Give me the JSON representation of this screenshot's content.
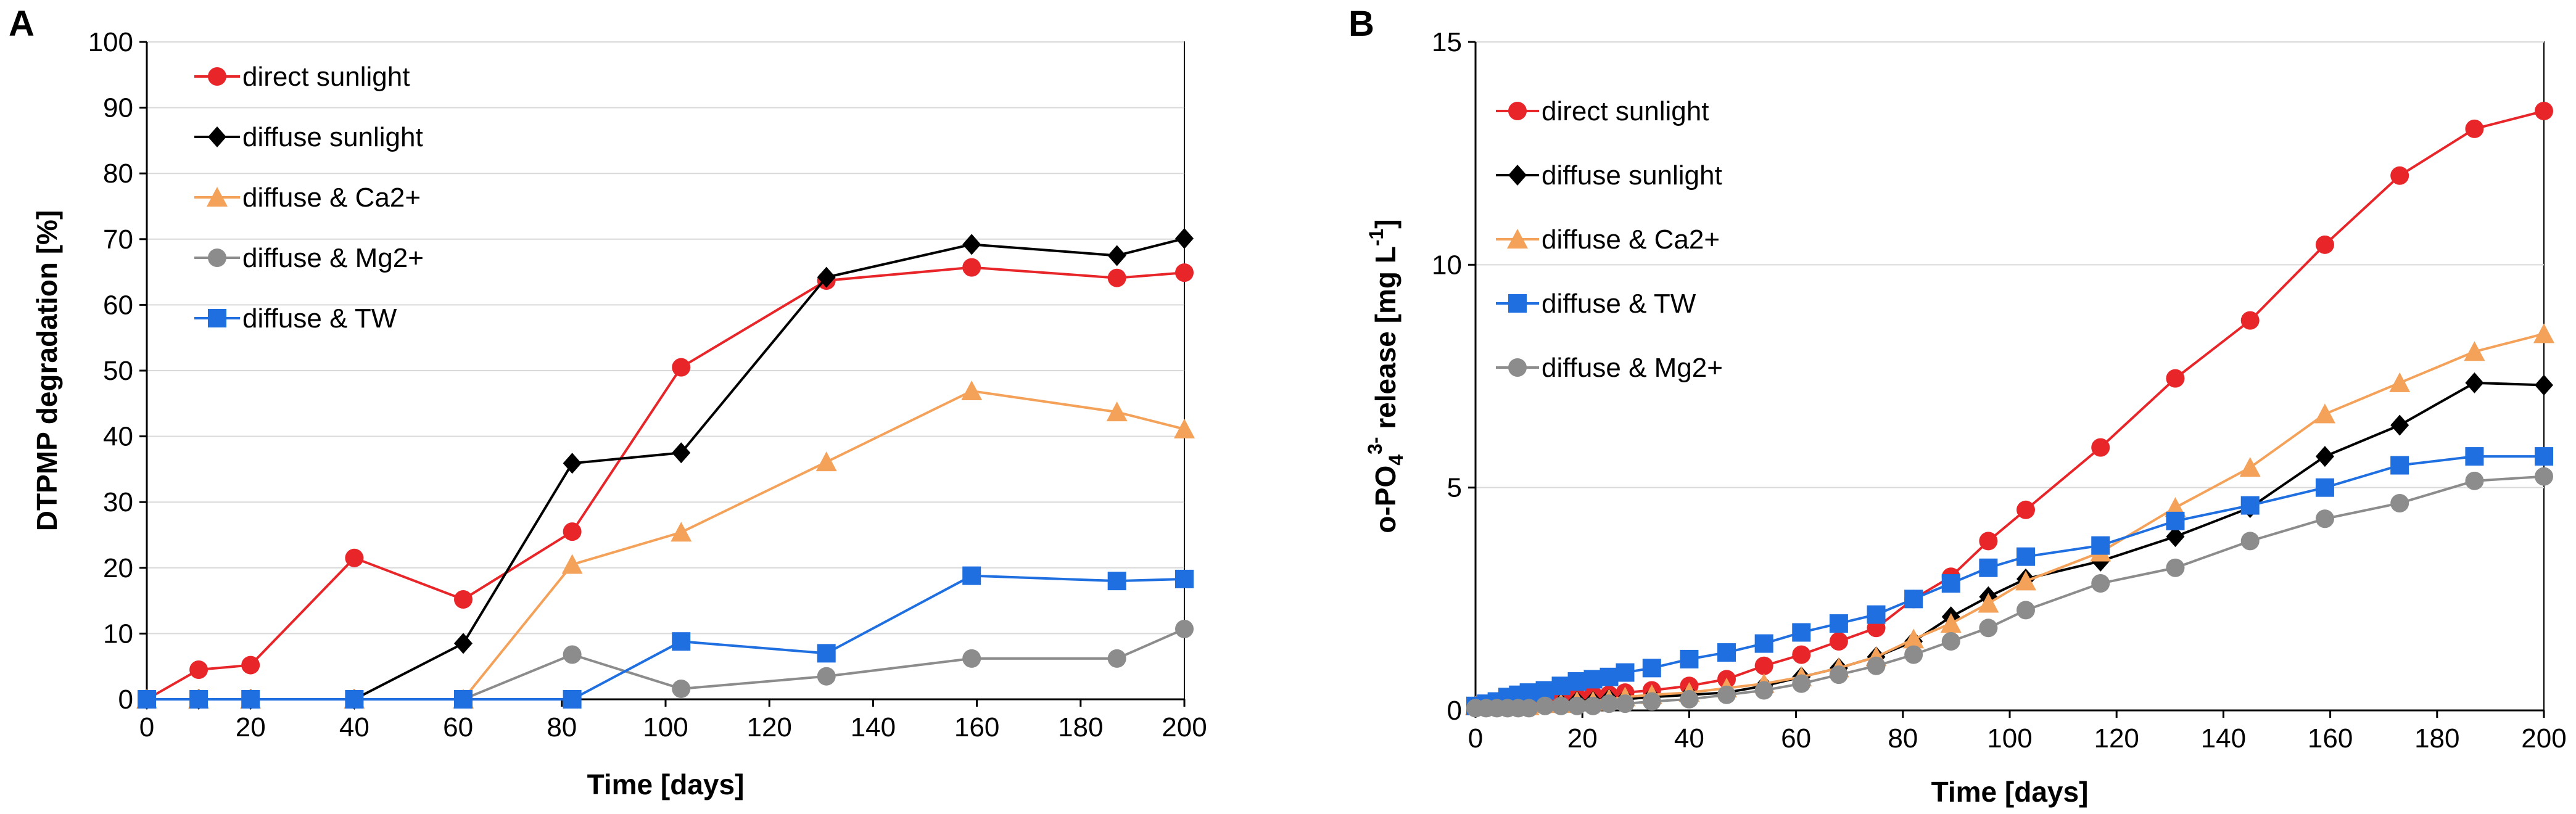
{
  "chart_data": [
    {
      "type": "line",
      "panel_label": "A",
      "title": "",
      "xlabel": "Time [days]",
      "ylabel": "DTPMP degradation [%]",
      "xlim": [
        0,
        200
      ],
      "ylim": [
        0,
        100
      ],
      "xticks": [
        0,
        20,
        40,
        60,
        80,
        100,
        120,
        140,
        160,
        180,
        200
      ],
      "yticks": [
        0,
        10,
        20,
        30,
        40,
        50,
        60,
        70,
        80,
        90,
        100
      ],
      "grid": "horizontal",
      "legend_position": "top-left",
      "series": [
        {
          "name": "direct sunlight",
          "color": "#e8262a",
          "marker": "circle",
          "x": [
            0,
            10,
            20,
            40,
            61,
            82,
            103,
            131,
            159,
            187,
            200
          ],
          "y": [
            0,
            4.5,
            5.2,
            21.5,
            15.2,
            25.5,
            50.5,
            63.7,
            65.7,
            64.1,
            64.9
          ]
        },
        {
          "name": "diffuse sunlight",
          "color": "#000000",
          "marker": "diamond",
          "x": [
            0,
            10,
            20,
            40,
            61,
            82,
            103,
            131,
            159,
            187,
            200
          ],
          "y": [
            0,
            0,
            0,
            0,
            8.5,
            35.9,
            37.5,
            64.2,
            69.2,
            67.5,
            70.1
          ]
        },
        {
          "name": "diffuse & Ca2+",
          "color": "#f4a15a",
          "marker": "triangle",
          "x": [
            0,
            10,
            20,
            40,
            61,
            82,
            103,
            131,
            159,
            187,
            200
          ],
          "y": [
            0,
            0,
            0,
            0,
            0,
            20.5,
            25.4,
            36.1,
            46.9,
            43.7,
            41.1
          ]
        },
        {
          "name": "diffuse & Mg2+",
          "color": "#8c8c8c",
          "marker": "circle",
          "x": [
            0,
            10,
            20,
            40,
            61,
            82,
            103,
            131,
            159,
            187,
            200
          ],
          "y": [
            0,
            0,
            0,
            0,
            0,
            6.8,
            1.6,
            3.5,
            6.2,
            6.2,
            10.7
          ]
        },
        {
          "name": "diffuse & TW",
          "color": "#1f6fe0",
          "marker": "square",
          "x": [
            0,
            10,
            20,
            40,
            61,
            82,
            103,
            131,
            159,
            187,
            200
          ],
          "y": [
            0,
            0,
            0,
            0,
            0,
            0,
            8.8,
            7,
            18.8,
            18,
            18.3
          ]
        }
      ]
    },
    {
      "type": "line",
      "panel_label": "B",
      "title": "",
      "xlabel": "Time [days]",
      "ylabel_parts": {
        "prefix": "o-PO",
        "sub": "4",
        "sup": "3-",
        "middle": " release [mg L",
        "sup2": "-1",
        "suffix": "]"
      },
      "xlim": [
        0,
        200
      ],
      "ylim": [
        0,
        15
      ],
      "xticks": [
        0,
        20,
        40,
        60,
        80,
        100,
        120,
        140,
        160,
        180,
        200
      ],
      "yticks": [
        0,
        5,
        10,
        15
      ],
      "grid": "horizontal",
      "legend_position": "top-left",
      "series": [
        {
          "name": "direct sunlight",
          "color": "#e8262a",
          "marker": "circle",
          "x": [
            0,
            2,
            4,
            6,
            8,
            10,
            13,
            16,
            19,
            22,
            25,
            28,
            33,
            40,
            47,
            54,
            61,
            68,
            75,
            82,
            89,
            96,
            103,
            117,
            131,
            145,
            159,
            173,
            187,
            200
          ],
          "y": [
            0.1,
            0.1,
            0.1,
            0.1,
            0.15,
            0.15,
            0.2,
            0.25,
            0.3,
            0.35,
            0.35,
            0.4,
            0.45,
            0.55,
            0.7,
            1.0,
            1.25,
            1.55,
            1.85,
            2.5,
            3.0,
            3.8,
            4.5,
            5.9,
            7.45,
            8.75,
            10.45,
            12.0,
            13.05,
            13.45
          ]
        },
        {
          "name": "diffuse sunlight",
          "color": "#000000",
          "marker": "diamond",
          "x": [
            0,
            2,
            4,
            6,
            8,
            10,
            13,
            16,
            19,
            22,
            25,
            28,
            33,
            40,
            47,
            54,
            61,
            68,
            75,
            82,
            89,
            96,
            103,
            117,
            131,
            145,
            159,
            173,
            187,
            200
          ],
          "y": [
            0.1,
            0.1,
            0.1,
            0.1,
            0.1,
            0.1,
            0.15,
            0.15,
            0.2,
            0.2,
            0.25,
            0.25,
            0.3,
            0.35,
            0.4,
            0.55,
            0.75,
            0.95,
            1.2,
            1.55,
            2.1,
            2.55,
            2.95,
            3.35,
            3.9,
            4.55,
            5.7,
            6.4,
            7.35,
            7.3
          ]
        },
        {
          "name": "diffuse & Ca2+",
          "color": "#f4a15a",
          "marker": "triangle",
          "x": [
            0,
            2,
            4,
            6,
            8,
            10,
            13,
            16,
            19,
            22,
            25,
            28,
            33,
            40,
            47,
            54,
            61,
            68,
            75,
            82,
            89,
            96,
            103,
            117,
            131,
            145,
            159,
            173,
            187,
            200
          ],
          "y": [
            0.1,
            0.1,
            0.1,
            0.1,
            0.1,
            0.1,
            0.15,
            0.15,
            0.2,
            0.2,
            0.25,
            0.3,
            0.35,
            0.4,
            0.5,
            0.6,
            0.75,
            0.95,
            1.2,
            1.6,
            1.95,
            2.4,
            2.9,
            3.55,
            4.55,
            5.45,
            6.65,
            7.35,
            8.05,
            8.45
          ]
        },
        {
          "name": "diffuse & TW",
          "color": "#1f6fe0",
          "marker": "square",
          "x": [
            0,
            2,
            4,
            6,
            8,
            10,
            13,
            16,
            19,
            22,
            25,
            28,
            33,
            40,
            47,
            54,
            61,
            68,
            75,
            82,
            89,
            96,
            103,
            117,
            131,
            145,
            159,
            173,
            187,
            200
          ],
          "y": [
            0.1,
            0.15,
            0.2,
            0.3,
            0.35,
            0.4,
            0.45,
            0.55,
            0.65,
            0.7,
            0.75,
            0.85,
            0.95,
            1.15,
            1.3,
            1.5,
            1.75,
            1.95,
            2.15,
            2.5,
            2.85,
            3.2,
            3.45,
            3.7,
            4.25,
            4.6,
            5.0,
            5.5,
            5.7,
            5.7
          ]
        },
        {
          "name": "diffuse & Mg2+",
          "color": "#8c8c8c",
          "marker": "circle",
          "x": [
            0,
            2,
            4,
            6,
            8,
            10,
            13,
            16,
            19,
            22,
            25,
            28,
            33,
            40,
            47,
            54,
            61,
            68,
            75,
            82,
            89,
            96,
            103,
            117,
            131,
            145,
            159,
            173,
            187,
            200
          ],
          "y": [
            0.05,
            0.05,
            0.05,
            0.05,
            0.05,
            0.05,
            0.1,
            0.1,
            0.1,
            0.1,
            0.15,
            0.15,
            0.2,
            0.25,
            0.35,
            0.45,
            0.6,
            0.8,
            1.0,
            1.25,
            1.55,
            1.85,
            2.25,
            2.85,
            3.2,
            3.8,
            4.3,
            4.65,
            5.15,
            5.25
          ]
        }
      ]
    }
  ]
}
